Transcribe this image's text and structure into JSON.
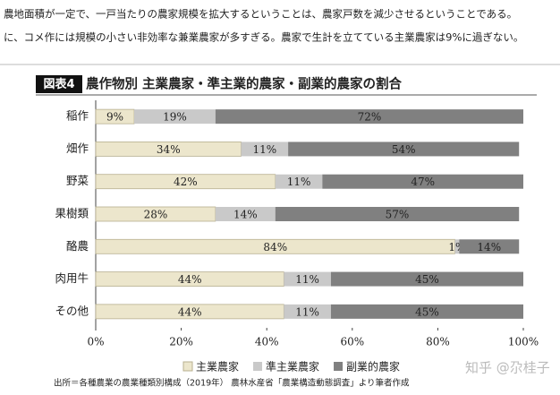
{
  "intro_lines": [
    "農地面積が一定で、一戸当たりの農家規模を拡大するということは、農家戸数を減少させるということである。",
    "に、コメ作には規模の小さい非効率な兼業農家が多すぎる。農家で生計を立てている主業農家は9%に過ぎない。"
  ],
  "chart_data": {
    "type": "stacked-barh",
    "figure_label": "図表4",
    "title": "農作物別 主業農家・準主業的農家・副業的農家の割合",
    "categories": [
      "稲作",
      "畑作",
      "野菜",
      "果樹類",
      "酪農",
      "肉用牛",
      "その他"
    ],
    "series": [
      {
        "name": "主業農家",
        "color": "#ece6cc",
        "values": [
          9,
          34,
          42,
          28,
          84,
          44,
          44
        ],
        "value_labels": [
          "9%",
          "34%",
          "42%",
          "28%",
          "84%",
          "44%",
          "44%"
        ]
      },
      {
        "name": "準主業農家",
        "color": "#c9c9c9",
        "values": [
          19,
          11,
          11,
          14,
          1,
          11,
          11
        ],
        "value_labels": [
          "19%",
          "11%",
          "11%",
          "14%",
          "1%",
          "11%",
          "11%"
        ]
      },
      {
        "name": "副業的農家",
        "color": "#808080",
        "values": [
          72,
          54,
          47,
          57,
          14,
          45,
          45
        ],
        "value_labels": [
          "72%",
          "54%",
          "47%",
          "57%",
          "14%",
          "45%",
          "45%"
        ]
      }
    ],
    "xlim": [
      0,
      100
    ],
    "xticks": [
      {
        "value": 0,
        "label": "0%"
      },
      {
        "value": 20,
        "label": "20%"
      },
      {
        "value": 40,
        "label": "40%"
      },
      {
        "value": 60,
        "label": "60%"
      },
      {
        "value": 80,
        "label": "80%"
      },
      {
        "value": 100,
        "label": "100%"
      }
    ],
    "grid": false,
    "source": "出所＝各種農業の農業種類別構成（2019年） 農林水産省「農業構造動態調査」より筆者作成"
  },
  "watermark": "知乎 @尕桂子"
}
